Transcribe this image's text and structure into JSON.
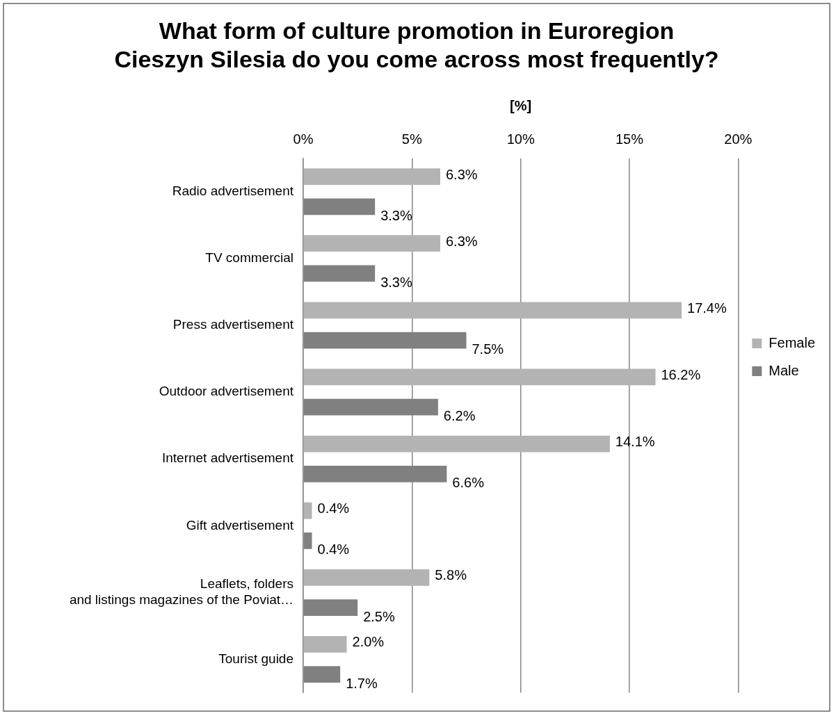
{
  "chart_data": {
    "type": "bar",
    "orientation": "horizontal",
    "title": "What form of culture promotion in Euroregion\nCieszyn Silesia do you come across most frequently?",
    "xlabel": "[%]",
    "categories": [
      "Radio advertisement",
      "TV commercial",
      "Press advertisement",
      "Outdoor advertisement",
      "Internet advertisement",
      "Gift advertisement",
      "Leaflets, folders\nand listings magazines of the Poviat…",
      "Tourist guide"
    ],
    "series": [
      {
        "name": "Female",
        "color": "#b3b3b3",
        "values": [
          6.3,
          6.3,
          17.4,
          16.2,
          14.1,
          0.4,
          5.8,
          2.0
        ],
        "value_labels": [
          "6.3%",
          "6.3%",
          "17.4%",
          "16.2%",
          "14.1%",
          "0.4%",
          "5.8%",
          "2.0%"
        ]
      },
      {
        "name": "Male",
        "color": "#808080",
        "values": [
          3.3,
          3.3,
          7.5,
          6.2,
          6.6,
          0.4,
          2.5,
          1.7
        ],
        "value_labels": [
          "3.3%",
          "3.3%",
          "7.5%",
          "6.2%",
          "6.6%",
          "0.4%",
          "2.5%",
          "1.7%"
        ]
      }
    ],
    "xlim": [
      0,
      20
    ],
    "xticks": [
      {
        "value": 0,
        "label": "0%"
      },
      {
        "value": 5,
        "label": "5%"
      },
      {
        "value": 10,
        "label": "10%"
      },
      {
        "value": 15,
        "label": "15%"
      },
      {
        "value": 20,
        "label": "20%"
      }
    ],
    "grid": "x",
    "legend": "right"
  }
}
